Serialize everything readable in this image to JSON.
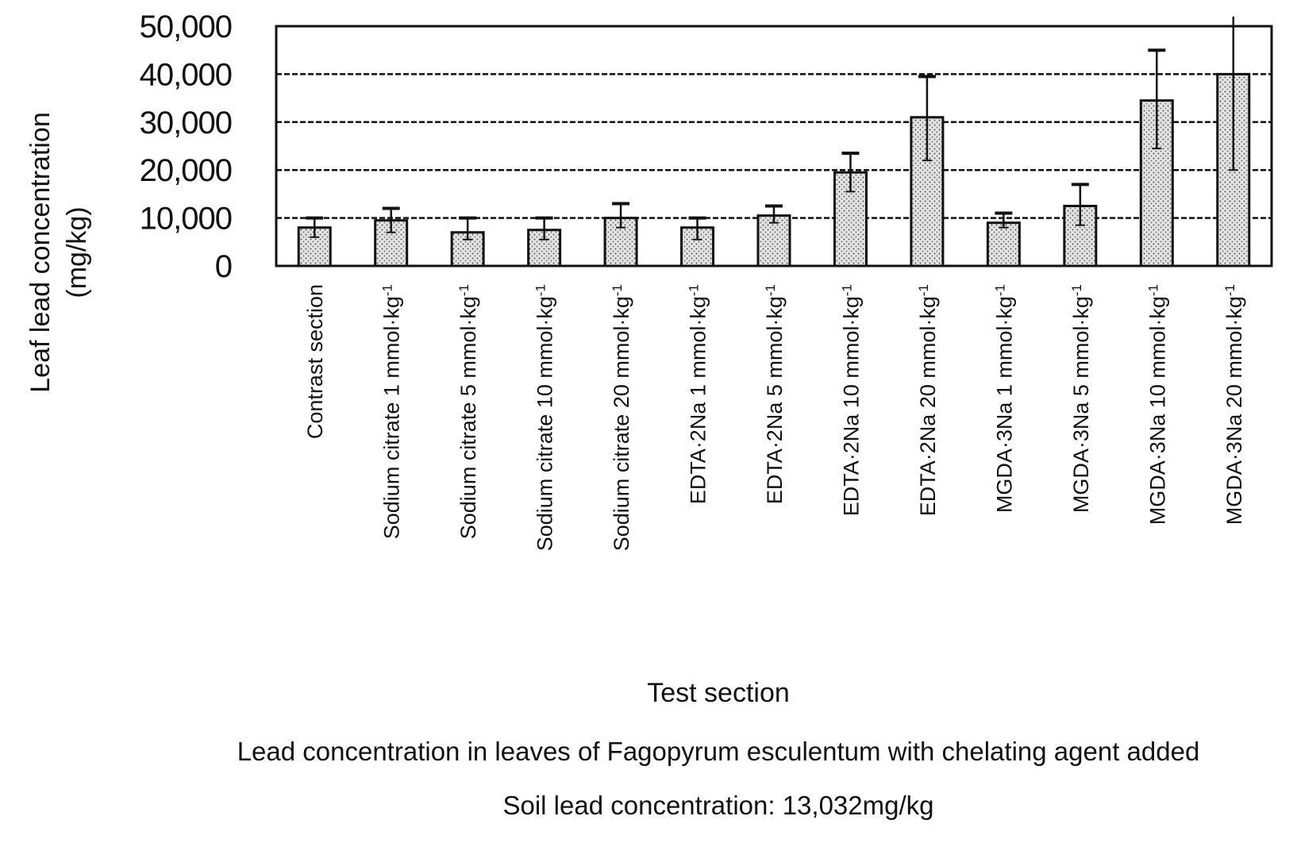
{
  "chart_data": {
    "type": "bar",
    "ylabel": "Leaf lead concentration",
    "ylabel_unit": "(mg/kg)",
    "xlabel": "Test section",
    "caption": "Lead concentration in leaves of Fagopyrum esculentum with chelating agent added",
    "subcaption": "Soil lead concentration: 13,032mg/kg",
    "ylim": [
      0,
      50000
    ],
    "yticks": [
      {
        "value": 0,
        "label": "0"
      },
      {
        "value": 10000,
        "label": "10,000"
      },
      {
        "value": 20000,
        "label": "20,000"
      },
      {
        "value": 30000,
        "label": "30,000"
      },
      {
        "value": 40000,
        "label": "40,000"
      },
      {
        "value": 50000,
        "label": "50,000"
      }
    ],
    "grid": true,
    "unit_suffix": "-1",
    "categories": [
      {
        "label": "Contrast section",
        "sup": ""
      },
      {
        "label": "Sodium citrate 1 mmol·kg",
        "sup": "-1"
      },
      {
        "label": "Sodium citrate 5 mmol·kg",
        "sup": "-1"
      },
      {
        "label": "Sodium citrate 10 mmol·kg",
        "sup": "-1"
      },
      {
        "label": "Sodium citrate 20 mmol·kg",
        "sup": "-1"
      },
      {
        "label": "EDTA·2Na 1 mmol·kg",
        "sup": "-1"
      },
      {
        "label": "EDTA·2Na 5 mmol·kg",
        "sup": "-1"
      },
      {
        "label": "EDTA·2Na 10 mmol·kg",
        "sup": "-1"
      },
      {
        "label": "EDTA·2Na 20 mmol·kg",
        "sup": "-1"
      },
      {
        "label": "MGDA·3Na 1 mmol·kg",
        "sup": "-1"
      },
      {
        "label": "MGDA·3Na 5 mmol·kg",
        "sup": "-1"
      },
      {
        "label": "MGDA·3Na 10 mmol·kg",
        "sup": "-1"
      },
      {
        "label": "MGDA·3Na 20 mmol·kg",
        "sup": "-1"
      }
    ],
    "values": [
      8000,
      9500,
      7000,
      7500,
      10000,
      8000,
      10500,
      19500,
      31000,
      9000,
      12500,
      34500,
      40000
    ],
    "error_upper": [
      10000,
      12000,
      10000,
      10000,
      13000,
      10000,
      12500,
      23500,
      39500,
      11000,
      17000,
      45000,
      52000
    ],
    "error_lower": [
      6000,
      7000,
      5500,
      5500,
      8000,
      5500,
      9000,
      15500,
      22000,
      8000,
      8500,
      24500,
      20000
    ],
    "colors": {
      "bar_fill": "#d9d9d9",
      "bar_stroke": "#111111",
      "grid": "#111111",
      "error_bar": "#111111"
    }
  }
}
